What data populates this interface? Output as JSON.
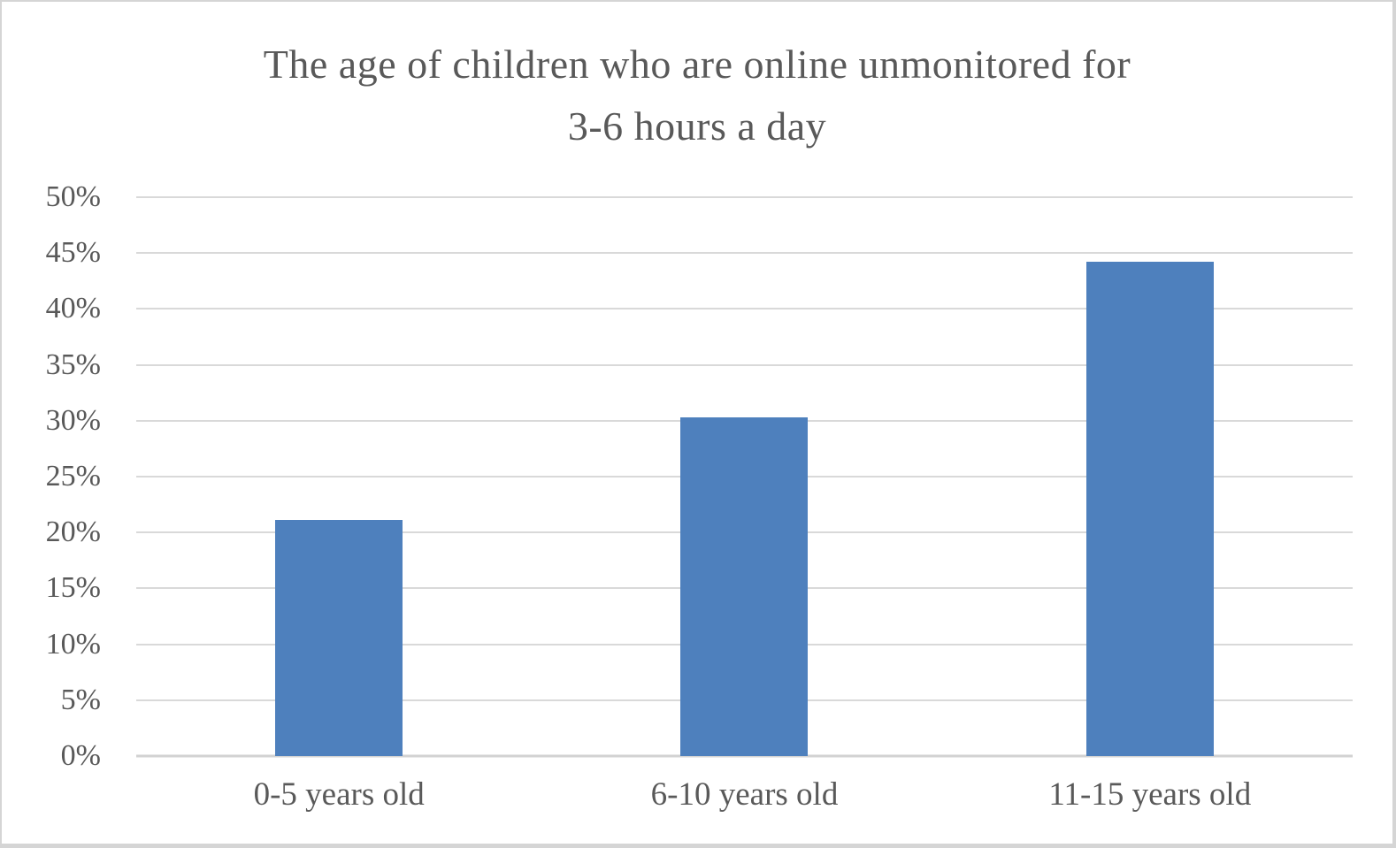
{
  "chart_data": {
    "type": "bar",
    "title": "The age of children who are online unmonitored for 3-6 hours a day",
    "title_lines": [
      "The age of children who are online unmonitored for",
      "3-6 hours a day"
    ],
    "categories": [
      "0-5 years old",
      "6-10 years old",
      "11-15 years old"
    ],
    "values": [
      21.1,
      30.3,
      44.2
    ],
    "unit": "%",
    "xlabel": "",
    "ylabel": "",
    "ylim": [
      0,
      50
    ],
    "y_tick_step": 5,
    "y_tick_labels": [
      "50%",
      "45%",
      "40%",
      "35%",
      "30%",
      "25%",
      "20%",
      "15%",
      "10%",
      "5%",
      "0%"
    ],
    "grid": "horizontal",
    "legend": "none",
    "colors": {
      "bar": "#4e80bd",
      "gridline": "#d9d9d9",
      "axis_line": "#d2d2d2",
      "text": "#595959"
    }
  }
}
